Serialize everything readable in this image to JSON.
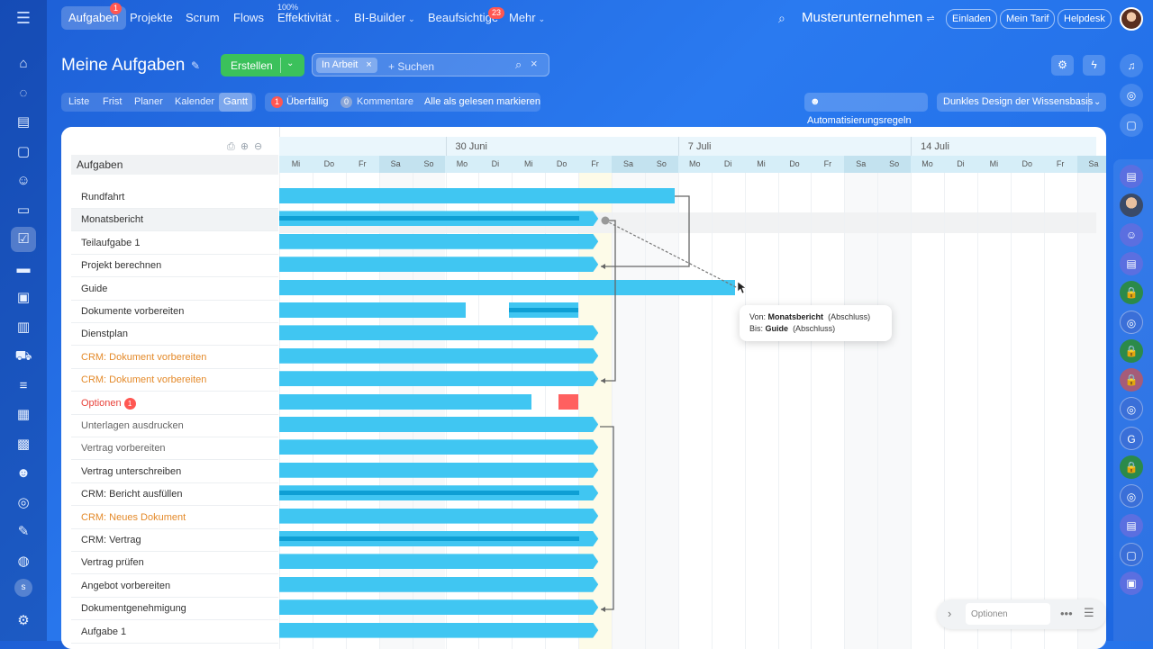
{
  "left_nav": {
    "items": [
      {
        "icon": "home-icon",
        "glyph": "⌂"
      },
      {
        "icon": "feed-icon",
        "glyph": "◌"
      },
      {
        "icon": "docs-icon",
        "glyph": "▤"
      },
      {
        "icon": "chat-icon",
        "glyph": "▢"
      },
      {
        "icon": "users-icon",
        "glyph": "☺"
      },
      {
        "icon": "document-icon",
        "glyph": "▭"
      },
      {
        "icon": "tasks-icon",
        "glyph": "☑",
        "active": true,
        "badge": "1"
      },
      {
        "icon": "drive-icon",
        "glyph": "▬"
      },
      {
        "icon": "presentation-icon",
        "glyph": "▣"
      },
      {
        "icon": "analytics-icon",
        "glyph": "▥"
      },
      {
        "icon": "cart-icon",
        "glyph": "⛟"
      },
      {
        "icon": "funnel-icon",
        "glyph": "≡"
      },
      {
        "icon": "contact-card-icon",
        "glyph": "▦"
      },
      {
        "icon": "calendar-icon",
        "glyph": "▩"
      },
      {
        "icon": "robot-icon",
        "glyph": "☻"
      },
      {
        "icon": "target-icon",
        "glyph": "◎"
      },
      {
        "icon": "edit-doc-icon",
        "glyph": "✎"
      },
      {
        "icon": "support-icon",
        "glyph": "◍"
      }
    ],
    "avatar_letter": "s",
    "settings_glyph": "⚙"
  },
  "top_nav": {
    "items": [
      {
        "label": "Aufgaben",
        "active": true,
        "badge": "1"
      },
      {
        "label": "Projekte"
      },
      {
        "label": "Scrum"
      },
      {
        "label": "Flows"
      },
      {
        "label": "Effektivität",
        "sup": "100%",
        "chev": true
      },
      {
        "label": "BI-Builder",
        "chev": true
      },
      {
        "label": "Beaufsichtige",
        "badge": "23"
      },
      {
        "label": "Mehr",
        "chev": true
      }
    ],
    "company": "Musterunternehmen",
    "buttons": [
      "Einladen",
      "Mein Tarif",
      "Helpdesk"
    ]
  },
  "header": {
    "title": "Meine Aufgaben",
    "create_label": "Erstellen",
    "filter_chip": "In Arbeit",
    "search_placeholder": "+ Suchen"
  },
  "view_tabs": [
    "Liste",
    "Frist",
    "Planer",
    "Kalender",
    "Gantt"
  ],
  "active_view": "Gantt",
  "counters": {
    "overdue_count": "1",
    "overdue_label": "Überfällig",
    "comments_count": "0",
    "comments_label": "Kommentare",
    "mark_read_label": "Alle als gelesen markieren"
  },
  "actions": {
    "automation_label": "Automatisierungsregeln",
    "theme_label": "Dunkles Design der Wissensbasis"
  },
  "task_list": {
    "header": "Aufgaben",
    "tasks": [
      {
        "title": "Rundfahrt"
      },
      {
        "title": "Monatsbericht",
        "selected": true
      },
      {
        "title": "Teilaufgabe 1"
      },
      {
        "title": "Projekt berechnen"
      },
      {
        "title": "Guide"
      },
      {
        "title": "Dokumente vorbereiten"
      },
      {
        "title": "Dienstplan"
      },
      {
        "title": "CRM: Dokument vorbereiten",
        "color": "#e48a2a"
      },
      {
        "title": "CRM: Dokument vorbereiten",
        "color": "#e48a2a"
      },
      {
        "title": "Optionen",
        "color": "#e8423a",
        "badge": "1"
      },
      {
        "title": "Unterlagen ausdrucken",
        "color": "#666666"
      },
      {
        "title": "Vertrag vorbereiten",
        "color": "#666666"
      },
      {
        "title": "Vertrag unterschreiben"
      },
      {
        "title": "CRM: Bericht ausfüllen"
      },
      {
        "title": "CRM: Neues Dokument",
        "color": "#e48a2a"
      },
      {
        "title": "CRM: Vertrag"
      },
      {
        "title": "Vertrag prüfen"
      },
      {
        "title": "Angebot vorbereiten"
      },
      {
        "title": "Dokumentgenehmigung"
      },
      {
        "title": "Aufgabe 1"
      }
    ]
  },
  "timeline": {
    "months": [
      {
        "label": "30 Juni",
        "day_index": 5
      },
      {
        "label": "7 Juli",
        "day_index": 12
      },
      {
        "label": "14 Juli",
        "day_index": 19
      }
    ],
    "days": [
      "Mi",
      "Do",
      "Fr",
      "Sa",
      "So",
      "Mo",
      "Di",
      "Mi",
      "Do",
      "Fr",
      "Sa",
      "So",
      "Mo",
      "Di",
      "Mi",
      "Do",
      "Fr",
      "Sa",
      "So",
      "Mo",
      "Di",
      "Mi",
      "Do",
      "Fr",
      "Sa"
    ],
    "today_index": 9,
    "bars": [
      {
        "row": 0,
        "start": 0,
        "end": 11.9
      },
      {
        "row": 1,
        "start": 0,
        "end": 9.6,
        "progress": 0.94,
        "arrow": true
      },
      {
        "row": 2,
        "start": 0,
        "end": 9.6,
        "arrow": true
      },
      {
        "row": 3,
        "start": 0,
        "end": 9.6,
        "arrow": true
      },
      {
        "row": 4,
        "start": 0,
        "end": 13.7
      },
      {
        "row": 5,
        "start": 0,
        "end": 5.6
      },
      {
        "row": 5,
        "start": 6.9,
        "end": 9.0,
        "progress": 1
      },
      {
        "row": 6,
        "start": 0,
        "end": 9.6,
        "arrow": true
      },
      {
        "row": 7,
        "start": 0,
        "end": 9.6,
        "arrow": true
      },
      {
        "row": 8,
        "start": 0,
        "end": 9.6,
        "arrow": true
      },
      {
        "row": 9,
        "start": 0,
        "end": 7.6
      },
      {
        "row": 9,
        "start": 8.4,
        "end": 9.0,
        "red": true
      },
      {
        "row": 10,
        "start": 0,
        "end": 9.6,
        "arrow": true
      },
      {
        "row": 11,
        "start": 0,
        "end": 9.6,
        "arrow": true
      },
      {
        "row": 12,
        "start": 0,
        "end": 9.6,
        "arrow": true
      },
      {
        "row": 13,
        "start": 0,
        "end": 9.6,
        "progress": 0.94,
        "arrow": true
      },
      {
        "row": 14,
        "start": 0,
        "end": 9.6,
        "arrow": true
      },
      {
        "row": 15,
        "start": 0,
        "end": 9.6,
        "progress": 0.94,
        "arrow": true
      },
      {
        "row": 16,
        "start": 0,
        "end": 9.6,
        "arrow": true
      },
      {
        "row": 17,
        "start": 0,
        "end": 9.6,
        "arrow": true
      },
      {
        "row": 18,
        "start": 0,
        "end": 9.6,
        "arrow": true
      },
      {
        "row": 19,
        "start": 0,
        "end": 9.6,
        "arrow": true
      }
    ]
  },
  "tooltip": {
    "from_label": "Von:",
    "from_task": "Monatsbericht",
    "from_type": "(Abschluss)",
    "to_label": "Bis:",
    "to_task": "Guide",
    "to_type": "(Abschluss)"
  },
  "options_panel": {
    "placeholder": "Optionen"
  },
  "right_bar": {
    "items": [
      "bell-icon",
      "target-icon",
      "chat-bubble-icon"
    ],
    "chats": [
      {
        "type": "blue",
        "glyph": "▤"
      },
      {
        "type": "face",
        "glyph": ""
      },
      {
        "type": "blue",
        "glyph": "☺"
      },
      {
        "type": "blue",
        "glyph": "▤"
      },
      {
        "type": "lock",
        "glyph": "🔒"
      },
      {
        "type": "chat",
        "glyph": "◎"
      },
      {
        "type": "lock",
        "glyph": "🔒"
      },
      {
        "type": "lockred",
        "glyph": "🔒"
      },
      {
        "type": "chat",
        "glyph": "◎"
      },
      {
        "type": "chat",
        "glyph": "G"
      },
      {
        "type": "lock",
        "glyph": "🔒"
      },
      {
        "type": "chat",
        "glyph": "◎"
      },
      {
        "type": "blue",
        "glyph": "▤"
      },
      {
        "type": "chat",
        "glyph": "▢"
      },
      {
        "type": "blue",
        "glyph": "▣"
      }
    ]
  },
  "colors": {
    "accent": "#2066e6",
    "bar": "#40c6f2",
    "progress": "#0e9fd4",
    "create": "#3bc15b",
    "alert": "#ff5752"
  }
}
